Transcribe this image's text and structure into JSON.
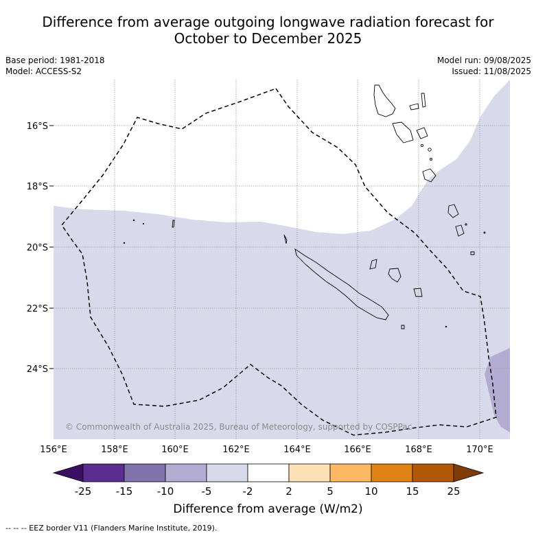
{
  "title_line1": "Difference from average outgoing longwave radiation forecast for",
  "title_line2": "October to December 2025",
  "meta_left": [
    "Base period: 1981-2018",
    "Model: ACCESS-S2"
  ],
  "meta_right": [
    "Model run: 09/08/2025",
    "Issued: 11/08/2025"
  ],
  "copyright": "© Commonwealth of Australia 2025, Bureau of Meteorology, supported by COSPPac",
  "lon_ticks": [
    "156°E",
    "158°E",
    "160°E",
    "162°E",
    "164°E",
    "166°E",
    "168°E",
    "170°E"
  ],
  "lat_ticks": [
    "16°S",
    "18°S",
    "20°S",
    "22°S",
    "24°S"
  ],
  "colorbar": {
    "label": "Difference from average (W/m2)",
    "ticks": [
      "-25",
      "-15",
      "-10",
      "-5",
      "-2",
      "2",
      "5",
      "10",
      "15",
      "25"
    ],
    "colors": [
      "#3b0f63",
      "#5b2d8e",
      "#8073ac",
      "#b2abd2",
      "#d8daeb",
      "#ffffff",
      "#fee0b6",
      "#fdb863",
      "#e08214",
      "#b35806",
      "#7f3b08"
    ]
  },
  "footer": "--  --  -- EEZ border V11 (Flanders Marine Institute, 2019).",
  "legend_colors": {
    "light_purple": "#d8daeb",
    "mid_purple": "#b2abd2",
    "eez_line": "#000000"
  }
}
